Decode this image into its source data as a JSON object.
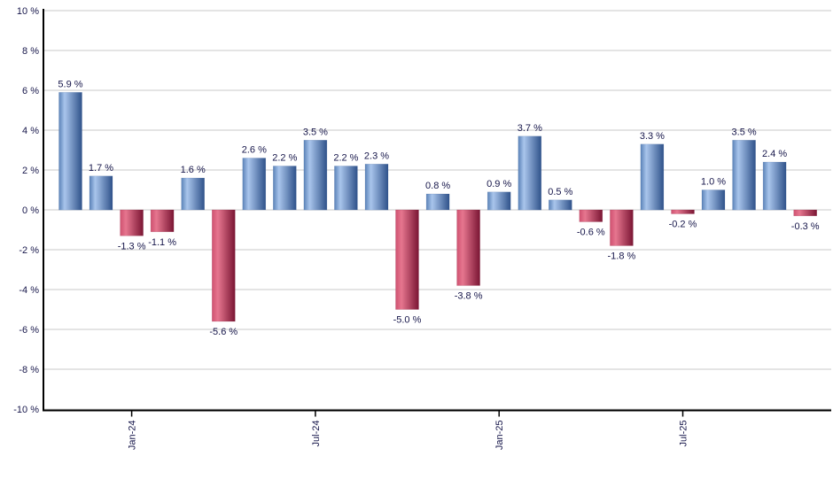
{
  "chart_data": {
    "type": "bar",
    "title": "",
    "xlabel": "",
    "ylabel": "",
    "ylim": [
      -10,
      10
    ],
    "y_tick_step": 2,
    "y_tick_suffix": " %",
    "grid": true,
    "legend": "none",
    "bars": [
      {
        "value": 5.9,
        "label": "5.9 %",
        "sign": "positive"
      },
      {
        "value": 1.7,
        "label": "1.7 %",
        "sign": "positive"
      },
      {
        "value": -1.3,
        "label": "-1.3 %",
        "sign": "negative"
      },
      {
        "value": -1.1,
        "label": "-1.1 %",
        "sign": "negative"
      },
      {
        "value": 1.6,
        "label": "1.6 %",
        "sign": "positive"
      },
      {
        "value": -5.6,
        "label": "-5.6 %",
        "sign": "negative"
      },
      {
        "value": 2.6,
        "label": "2.6 %",
        "sign": "positive"
      },
      {
        "value": 2.2,
        "label": "2.2 %",
        "sign": "positive"
      },
      {
        "value": 3.5,
        "label": "3.5 %",
        "sign": "positive"
      },
      {
        "value": 2.2,
        "label": "2.2 %",
        "sign": "positive"
      },
      {
        "value": 2.3,
        "label": "2.3 %",
        "sign": "positive"
      },
      {
        "value": -5.0,
        "label": "-5.0 %",
        "sign": "negative"
      },
      {
        "value": 0.8,
        "label": "0.8 %",
        "sign": "positive"
      },
      {
        "value": -3.8,
        "label": "-3.8 %",
        "sign": "negative"
      },
      {
        "value": 0.9,
        "label": "0.9 %",
        "sign": "positive"
      },
      {
        "value": 3.7,
        "label": "3.7 %",
        "sign": "positive"
      },
      {
        "value": 0.5,
        "label": "0.5 %",
        "sign": "positive"
      },
      {
        "value": -0.6,
        "label": "-0.6 %",
        "sign": "negative"
      },
      {
        "value": -1.8,
        "label": "-1.8 %",
        "sign": "negative"
      },
      {
        "value": 3.3,
        "label": "3.3 %",
        "sign": "positive"
      },
      {
        "value": -0.2,
        "label": "-0.2 %",
        "sign": "negative"
      },
      {
        "value": 1.0,
        "label": "1.0 %",
        "sign": "positive"
      },
      {
        "value": 3.5,
        "label": "3.5 %",
        "sign": "positive"
      },
      {
        "value": 2.4,
        "label": "2.4 %",
        "sign": "positive"
      },
      {
        "value": -0.3,
        "label": "-0.3 %",
        "sign": "negative"
      }
    ],
    "x_ticks": [
      {
        "bar_index": 2,
        "label": "Jan-24"
      },
      {
        "bar_index": 8,
        "label": "Jul-24"
      },
      {
        "bar_index": 14,
        "label": "Jan-25"
      },
      {
        "bar_index": 20,
        "label": "Jul-25"
      }
    ],
    "y_tick_labels": [
      "10 %",
      "8 %",
      "6 %",
      "4 %",
      "2 %",
      "0 %",
      "-2 %",
      "-4 %",
      "-6 %",
      "-8 %",
      "-10 %"
    ],
    "colors": {
      "positive_edge": "#5b83b8",
      "positive_light": "#a9c5ec",
      "positive_dark": "#2f528a",
      "negative_edge": "#cf5170",
      "negative_light": "#e6768f",
      "negative_dark": "#7a1533",
      "gridline": "#c9c9c9",
      "axis": "#000000",
      "label_text": "#16164a"
    }
  }
}
